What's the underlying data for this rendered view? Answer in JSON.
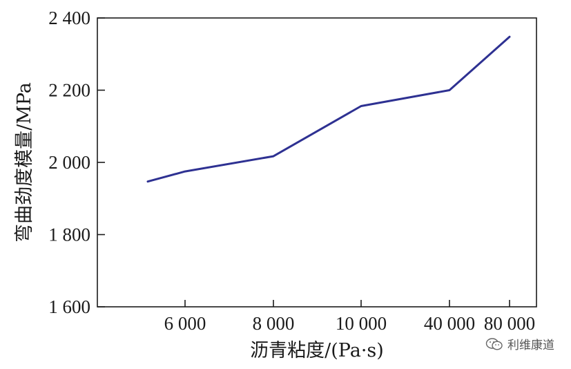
{
  "chart_data": {
    "type": "line",
    "categories": [
      "",
      "6 000",
      "8 000",
      "10 000",
      "40 000",
      "80 000"
    ],
    "series": [
      {
        "values": [
          1947,
          1975,
          2017,
          2156,
          2200,
          2348
        ],
        "color": "#2e3192"
      }
    ],
    "yticks": [
      "1 600",
      "1 800",
      "2 000",
      "2 200",
      "2 400"
    ],
    "ylim": [
      1600,
      2400
    ],
    "xlabel": "沥青粘度/(Pa·s)",
    "ylabel": "弯曲劲度模量/MPa",
    "grid": false
  },
  "watermark": {
    "text": "利维康道",
    "icon": "wechat-icon"
  }
}
